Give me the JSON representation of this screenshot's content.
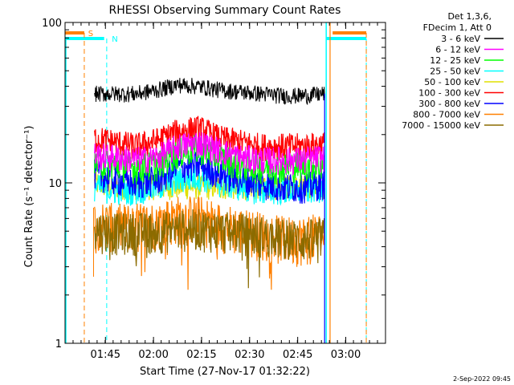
{
  "chart_data": {
    "type": "line",
    "title": "RHESSI Observing Summary Count Rates",
    "xlabel": "Start Time (27-Nov-17 01:32:22)",
    "ylabel": "Count Rate (s⁻¹ detector⁻¹)",
    "y_scale": "log",
    "ylim": [
      1,
      100
    ],
    "xlim_minutes": [
      0,
      100
    ],
    "x_ticks": [
      {
        "t": 12.6,
        "label": "01:45"
      },
      {
        "t": 27.6,
        "label": "02:00"
      },
      {
        "t": 42.6,
        "label": "02:15"
      },
      {
        "t": 57.6,
        "label": "02:30"
      },
      {
        "t": 72.6,
        "label": "02:45"
      },
      {
        "t": 87.6,
        "label": "03:00"
      }
    ],
    "y_ticks": [
      {
        "v": 1,
        "label": "1"
      },
      {
        "v": 10,
        "label": "10"
      },
      {
        "v": 100,
        "label": "100"
      }
    ],
    "legend": {
      "header": [
        "Det 1,3,6,",
        "FDecim 1, Att 0"
      ],
      "placement": "top-right-outside"
    },
    "flags": [
      {
        "label": "S",
        "color": "#ff8000"
      },
      {
        "label": "N",
        "color": "#00ffff"
      }
    ],
    "data_window_minutes": [
      9.2,
      81.0
    ],
    "series": [
      {
        "name": "3 - 6 keV",
        "color": "#000000",
        "level": [
          36,
          36,
          36,
          38,
          41,
          40,
          38,
          37,
          36,
          35,
          35,
          36
        ]
      },
      {
        "name": "6 - 12 keV",
        "color": "#ff00ff",
        "level": [
          15,
          14.5,
          14,
          14.5,
          17,
          18,
          16,
          14.5,
          14,
          14,
          14,
          14.5
        ]
      },
      {
        "name": "12 - 25 keV",
        "color": "#00ff00",
        "level": [
          13.5,
          13,
          12.5,
          13,
          15.5,
          16.5,
          14.5,
          13,
          12.5,
          12.5,
          13,
          13
        ]
      },
      {
        "name": "25 - 50 keV",
        "color": "#00ffff",
        "level": [
          9.5,
          9,
          9,
          9.5,
          10.5,
          11,
          10,
          9.5,
          9,
          9,
          9,
          9.5
        ]
      },
      {
        "name": "50 - 100 keV",
        "color": "#e0e000",
        "level": [
          10,
          9.5,
          9.5,
          9.5,
          9.5,
          9.5,
          9.5,
          9.5,
          9.5,
          9.5,
          9.5,
          9.5
        ]
      },
      {
        "name": "100 - 300 keV",
        "color": "#ff0000",
        "level": [
          19,
          18,
          17,
          18.5,
          21,
          22,
          19,
          18,
          17,
          17,
          17,
          17.5
        ]
      },
      {
        "name": "300 - 800 keV",
        "color": "#0000ff",
        "level": [
          11.5,
          10.5,
          10,
          10.5,
          12.5,
          13,
          11.5,
          10.5,
          10,
          9.5,
          9.5,
          10
        ]
      },
      {
        "name": "800 - 7000 keV",
        "color": "#ff8000",
        "level": [
          5.8,
          5.5,
          5.6,
          5.7,
          6.2,
          6.2,
          5.6,
          5.2,
          4.9,
          4.6,
          4.6,
          4.9
        ]
      },
      {
        "name": "7000 - 15000 keV",
        "color": "#8b6b00",
        "level": [
          5.2,
          5.0,
          5.0,
          5.1,
          5.2,
          5.3,
          5.1,
          5.0,
          4.8,
          4.6,
          4.5,
          4.7
        ]
      }
    ]
  },
  "timestamp": "2-Sep-2022 09:45"
}
